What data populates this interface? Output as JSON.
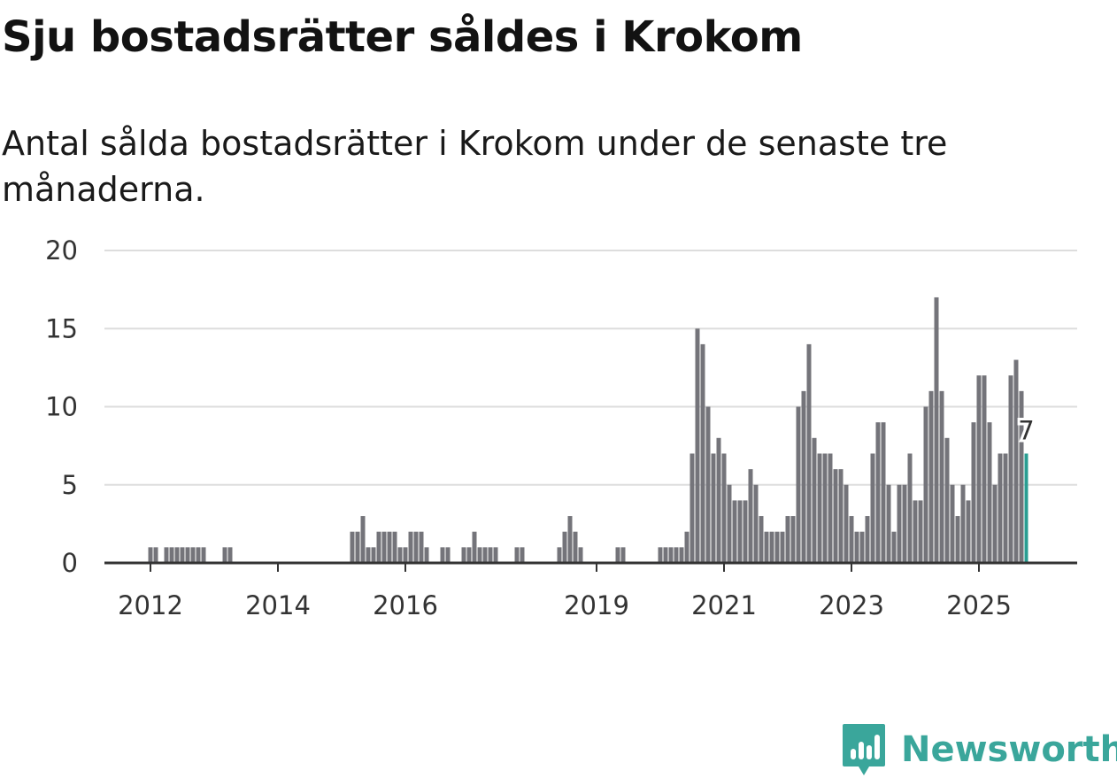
{
  "title": "Sju bostadsrätter såldes i Krokom",
  "subtitle": "Antal sålda bostadsrätter i Krokom under de senaste tre månaderna.",
  "brand": {
    "name": "Newsworthy",
    "color": "#3aa69b",
    "icon": "newsworthy-logo-icon"
  },
  "colors": {
    "bar": "#74747a",
    "highlight": "#2a9d92",
    "grid": "#dddddd",
    "axis": "#333333"
  },
  "chart_data": {
    "type": "bar",
    "title": "Sju bostadsrätter såldes i Krokom",
    "xlabel": "",
    "ylabel": "",
    "ylim": [
      0,
      20
    ],
    "yticks": [
      0,
      5,
      10,
      15,
      20
    ],
    "xticks": [
      {
        "label": "2012",
        "index": 0
      },
      {
        "label": "2014",
        "index": 24
      },
      {
        "label": "2016",
        "index": 48
      },
      {
        "label": "2019",
        "index": 84
      },
      {
        "label": "2021",
        "index": 108
      },
      {
        "label": "2023",
        "index": 132
      },
      {
        "label": "2025",
        "index": 156
      }
    ],
    "start": "2012-01",
    "values": [
      1,
      1,
      0,
      1,
      1,
      1,
      1,
      1,
      1,
      1,
      1,
      0,
      0,
      0,
      1,
      1,
      0,
      0,
      0,
      0,
      0,
      0,
      0,
      0,
      0,
      0,
      0,
      0,
      0,
      0,
      0,
      0,
      0,
      0,
      0,
      0,
      0,
      0,
      2,
      2,
      3,
      1,
      1,
      2,
      2,
      2,
      2,
      1,
      1,
      2,
      2,
      2,
      1,
      0,
      0,
      1,
      1,
      0,
      0,
      1,
      1,
      2,
      1,
      1,
      1,
      1,
      0,
      0,
      0,
      1,
      1,
      0,
      0,
      0,
      0,
      0,
      0,
      1,
      2,
      3,
      2,
      1,
      0,
      0,
      0,
      0,
      0,
      0,
      1,
      1,
      0,
      0,
      0,
      0,
      0,
      0,
      1,
      1,
      1,
      1,
      1,
      2,
      7,
      15,
      14,
      10,
      7,
      8,
      7,
      5,
      4,
      4,
      4,
      6,
      5,
      3,
      2,
      2,
      2,
      2,
      3,
      3,
      10,
      11,
      14,
      8,
      7,
      7,
      7,
      6,
      6,
      5,
      3,
      2,
      2,
      3,
      7,
      9,
      9,
      5,
      2,
      5,
      5,
      7,
      4,
      4,
      10,
      11,
      17,
      11,
      8,
      5,
      3,
      5,
      4,
      9,
      12,
      12,
      9,
      5,
      7,
      7,
      12,
      13,
      11,
      7
    ],
    "highlight_last": true,
    "last_label": "7"
  }
}
